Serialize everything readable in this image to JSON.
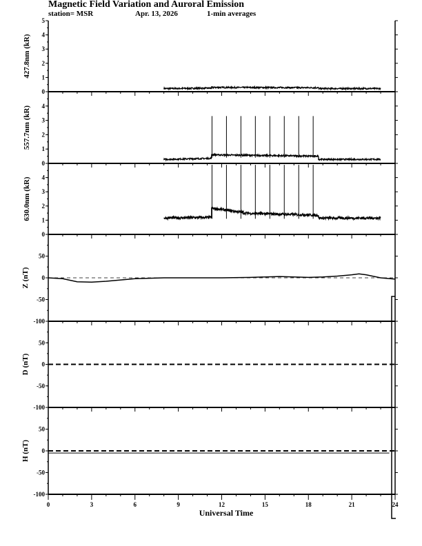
{
  "chart_data": {
    "type": "line",
    "title": "Magnetic Field Variation and Auroral Emission",
    "subtitle": {
      "station": "station= MSR",
      "date": "Apr. 13, 2026",
      "averaging": "1-min averages"
    },
    "xlabel": "Universal Time",
    "xlim": [
      0,
      24
    ],
    "xticks": [
      "0",
      "3",
      "6",
      "9",
      "12",
      "15",
      "18",
      "21",
      "24"
    ],
    "colors": {
      "line": "#000000",
      "background": "#ffffff"
    },
    "panels": [
      {
        "id": "427.8",
        "ylabel": "427.8nm (kR)",
        "ylim": [
          0,
          5
        ],
        "yticks": [
          "0",
          "1",
          "2",
          "3",
          "4",
          "5"
        ],
        "segments": [
          {
            "x0": 8,
            "x1": 11.3,
            "y0": 0.22,
            "y1": 0.25
          },
          {
            "x0": 11.3,
            "x1": 18.7,
            "y0": 0.3,
            "y1": 0.28
          },
          {
            "x0": 18.7,
            "x1": 23,
            "y0": 0.22,
            "y1": 0.22
          }
        ],
        "spikes": []
      },
      {
        "id": "557.7",
        "ylabel": "557.7nm (kR)",
        "ylim": [
          0,
          5
        ],
        "yticks": [
          "0",
          "1",
          "2",
          "3",
          "4"
        ],
        "segments": [
          {
            "x0": 8,
            "x1": 11.3,
            "y0": 0.28,
            "y1": 0.35
          },
          {
            "x0": 11.3,
            "x1": 18.7,
            "y0": 0.6,
            "y1": 0.5
          },
          {
            "x0": 18.7,
            "x1": 23,
            "y0": 0.28,
            "y1": 0.28
          }
        ],
        "spikes": [
          11.33,
          12.33,
          13.33,
          14.33,
          15.33,
          16.33,
          17.33,
          18.33
        ],
        "spike_top": 3.3
      },
      {
        "id": "630.0",
        "ylabel": "630.0nm (kR)",
        "ylim": [
          0,
          5
        ],
        "yticks": [
          "0",
          "1",
          "2",
          "3",
          "4"
        ],
        "segments": [
          {
            "x0": 8,
            "x1": 11.3,
            "y0": 1.15,
            "y1": 1.2
          },
          {
            "x0": 11.3,
            "x1": 13.5,
            "y0": 1.85,
            "y1": 1.55
          },
          {
            "x0": 13.5,
            "x1": 18.7,
            "y0": 1.5,
            "y1": 1.35
          },
          {
            "x0": 18.7,
            "x1": 23,
            "y0": 1.15,
            "y1": 1.15
          }
        ],
        "spikes": [
          11.33,
          12.33,
          13.33,
          14.33,
          15.33,
          16.33,
          17.33,
          18.33
        ],
        "spike_top": 4.9
      },
      {
        "id": "Z",
        "ylabel": "Z (nT)",
        "ylim": [
          -100,
          100
        ],
        "yticks": [
          "50",
          "0",
          "-50",
          "-100"
        ],
        "baseline_style": "thin-dashed",
        "series": {
          "x": [
            0,
            1,
            2,
            3,
            4,
            5,
            6,
            8,
            10,
            12,
            14,
            15,
            16,
            17,
            18,
            19,
            20,
            21,
            21.5,
            22,
            23,
            24
          ],
          "y": [
            0,
            -2,
            -9,
            -10,
            -8,
            -5,
            -2,
            0,
            0,
            0,
            1,
            2,
            3,
            2,
            1,
            2,
            4,
            7,
            9,
            7,
            0,
            -3
          ]
        }
      },
      {
        "id": "D",
        "ylabel": "D (nT)",
        "ylim": [
          -100,
          100
        ],
        "yticks": [
          "50",
          "0",
          "-50",
          "-100"
        ],
        "baseline_style": "thick-dashed",
        "series": {
          "x": [],
          "y": []
        }
      },
      {
        "id": "H",
        "ylabel": "H (nT)",
        "ylim": [
          -100,
          100
        ],
        "yticks": [
          "50",
          "0",
          "-50",
          "-100"
        ],
        "baseline_style": "thick-dashed",
        "series": {
          "x": [
            0,
            23.6
          ],
          "y": [
            -5,
            -5
          ]
        }
      }
    ]
  }
}
